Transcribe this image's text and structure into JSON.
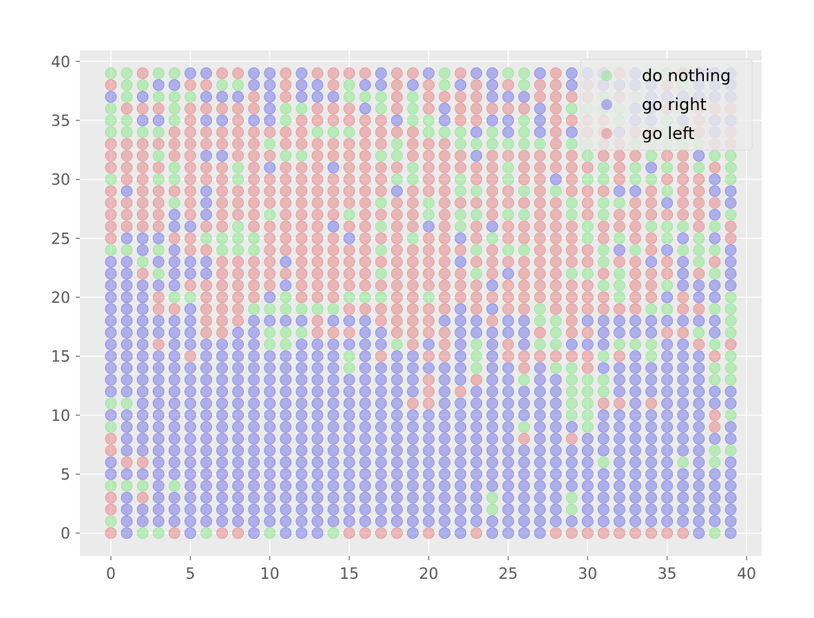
{
  "chart_data": {
    "type": "scatter",
    "title": "",
    "xlabel": "",
    "ylabel": "",
    "xlim": [
      -1.95,
      40.95
    ],
    "ylim": [
      -1.95,
      40.95
    ],
    "xticks": [
      "0",
      "5",
      "10",
      "15",
      "20",
      "25",
      "30",
      "35",
      "40"
    ],
    "yticks": [
      "0",
      "5",
      "10",
      "15",
      "20",
      "25",
      "30",
      "35",
      "40"
    ],
    "grid": true,
    "legend_position": "top-right",
    "marker_alpha": 0.55,
    "grid_x": [
      0,
      39
    ],
    "grid_y": [
      0,
      39
    ],
    "series": [
      {
        "name": "do nothing",
        "color": "#8fe58f"
      },
      {
        "name": "go right",
        "color": "#7b7be6"
      },
      {
        "name": "go left",
        "color": "#e68a8a"
      }
    ],
    "rows": [
      "0020011221121222212210211001211121002111",
      "2001122001121120112120121202212111120111",
      "1010001112121110002022221112222020111111",
      "0222022222100222102021222221200001120222",
      "0011021121102222221001221101222201101211",
      "0000222222222000222200010101212212202212",
      "2222222222022222220222000000200220000022",
      "2220221122200222200222212222220222022100",
      "2222022202122212222022222022222020102020",
      "0220022202222222220022022022120020022210",
      "2122221222222222221222002202022211202211",
      "2222021222222222202202222222202002212221",
      "2222121222022220222202002002202022222210",
      "2222112202222212202212021222220222000202",
      "2111220000222221222022120222220202201012",
      "0010122000222222202222202002222010210001",
      "1101111222212222222222122222222022121021",
      "1120111222222222202222202122200202221201",
      "1111122222212222222222221222222002201111",
      "1112002222102220002202222222222202212110",
      "1112212220000002222222121220222222002200",
      "1111112221111211122221112110021111111110",
      "1111112211000222112222111112022111122010",
      "1112111111001111110212101210011100011202",
      "1111121111111110121122101222222021011120",
      "1111111111111110111111101121002111111100",
      "1111111111111111111121121101100011111100",
      "1111111111111111111121211111100011111111",
      "0011111111111111111221111111100221211111",
      "1111111111111111111111111111100111111120",
      "0111111111111111111111111101110111111121",
      "2111111111111111111111111121121111111111",
      "2111111111111111111111111111111111111100",
      "1221111111111111111111111111111011110101",
      "1111111111111111111111111111111111111111",
      "0001011111111111111111111111111111111111",
      "2121111111111111111111110111101111111111",
      "2111111111111111111111110111101111111111",
      "0111111111111111111111111111111111111111",
      "2100210221011102222121121111222222222101"
    ]
  }
}
